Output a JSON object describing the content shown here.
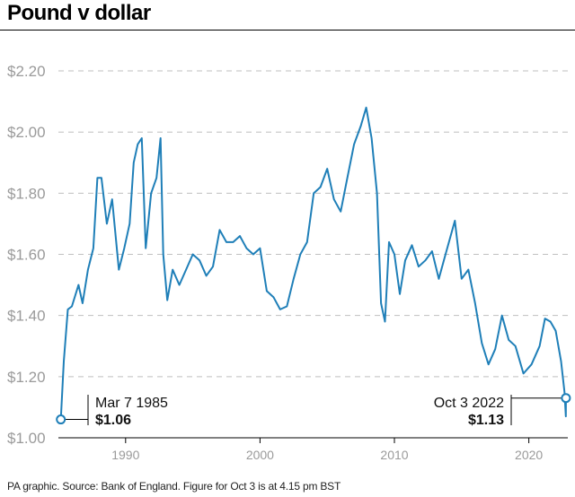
{
  "title": "Pound v dollar",
  "source": "PA graphic. Source: Bank of England. Figure for Oct 3 is at 4.15 pm BST",
  "colors": {
    "line": "#1f7fb8",
    "grid": "#bfbfbf",
    "tick": "#9a9a9a"
  },
  "chart_data": {
    "type": "line",
    "title": "Pound v dollar",
    "xlabel": "",
    "ylabel": "",
    "xlim": [
      1985.0,
      2022.9
    ],
    "ylim": [
      1.0,
      2.25
    ],
    "y_ticks": [
      1.0,
      1.2,
      1.4,
      1.6,
      1.8,
      2.0,
      2.2
    ],
    "y_tick_labels": [
      "$1.00",
      "$1.20",
      "$1.40",
      "$1.60",
      "$1.80",
      "$2.00",
      "$2.20"
    ],
    "x_ticks": [
      1990,
      2000,
      2010,
      2020
    ],
    "x_tick_labels": [
      "1990",
      "2000",
      "2010",
      "2020"
    ],
    "grid": "horizontal dashed",
    "series": [
      {
        "values": [
          [
            1985.18,
            1.06
          ],
          [
            1985.4,
            1.25
          ],
          [
            1985.7,
            1.42
          ],
          [
            1986.0,
            1.43
          ],
          [
            1986.5,
            1.5
          ],
          [
            1986.8,
            1.44
          ],
          [
            1987.2,
            1.55
          ],
          [
            1987.6,
            1.62
          ],
          [
            1987.9,
            1.85
          ],
          [
            1988.2,
            1.85
          ],
          [
            1988.6,
            1.7
          ],
          [
            1989.0,
            1.78
          ],
          [
            1989.5,
            1.55
          ],
          [
            1989.9,
            1.62
          ],
          [
            1990.3,
            1.7
          ],
          [
            1990.6,
            1.9
          ],
          [
            1990.9,
            1.96
          ],
          [
            1991.2,
            1.98
          ],
          [
            1991.5,
            1.62
          ],
          [
            1991.9,
            1.8
          ],
          [
            1992.3,
            1.85
          ],
          [
            1992.6,
            1.98
          ],
          [
            1992.8,
            1.6
          ],
          [
            1993.1,
            1.45
          ],
          [
            1993.5,
            1.55
          ],
          [
            1994.0,
            1.5
          ],
          [
            1994.5,
            1.55
          ],
          [
            1995.0,
            1.6
          ],
          [
            1995.5,
            1.58
          ],
          [
            1996.0,
            1.53
          ],
          [
            1996.5,
            1.56
          ],
          [
            1997.0,
            1.68
          ],
          [
            1997.5,
            1.64
          ],
          [
            1998.0,
            1.64
          ],
          [
            1998.5,
            1.66
          ],
          [
            1999.0,
            1.62
          ],
          [
            1999.5,
            1.6
          ],
          [
            2000.0,
            1.62
          ],
          [
            2000.5,
            1.48
          ],
          [
            2001.0,
            1.46
          ],
          [
            2001.5,
            1.42
          ],
          [
            2002.0,
            1.43
          ],
          [
            2002.5,
            1.52
          ],
          [
            2003.0,
            1.6
          ],
          [
            2003.5,
            1.64
          ],
          [
            2004.0,
            1.8
          ],
          [
            2004.5,
            1.82
          ],
          [
            2005.0,
            1.88
          ],
          [
            2005.5,
            1.78
          ],
          [
            2006.0,
            1.74
          ],
          [
            2006.5,
            1.85
          ],
          [
            2007.0,
            1.96
          ],
          [
            2007.5,
            2.02
          ],
          [
            2007.9,
            2.08
          ],
          [
            2008.3,
            1.98
          ],
          [
            2008.7,
            1.8
          ],
          [
            2009.0,
            1.44
          ],
          [
            2009.3,
            1.38
          ],
          [
            2009.6,
            1.64
          ],
          [
            2010.0,
            1.6
          ],
          [
            2010.4,
            1.47
          ],
          [
            2010.8,
            1.58
          ],
          [
            2011.3,
            1.63
          ],
          [
            2011.8,
            1.56
          ],
          [
            2012.3,
            1.58
          ],
          [
            2012.8,
            1.61
          ],
          [
            2013.3,
            1.52
          ],
          [
            2013.8,
            1.6
          ],
          [
            2014.5,
            1.71
          ],
          [
            2015.0,
            1.52
          ],
          [
            2015.5,
            1.55
          ],
          [
            2016.0,
            1.44
          ],
          [
            2016.5,
            1.31
          ],
          [
            2017.0,
            1.24
          ],
          [
            2017.5,
            1.29
          ],
          [
            2018.0,
            1.4
          ],
          [
            2018.5,
            1.32
          ],
          [
            2019.0,
            1.3
          ],
          [
            2019.6,
            1.21
          ],
          [
            2020.2,
            1.24
          ],
          [
            2020.8,
            1.3
          ],
          [
            2021.2,
            1.39
          ],
          [
            2021.6,
            1.38
          ],
          [
            2022.0,
            1.35
          ],
          [
            2022.4,
            1.25
          ],
          [
            2022.65,
            1.15
          ],
          [
            2022.75,
            1.07
          ],
          [
            2022.76,
            1.13
          ]
        ]
      }
    ],
    "annotations": [
      {
        "date": "Mar 7 1985",
        "value": "$1.06",
        "x": 1985.18,
        "y": 1.06
      },
      {
        "date": "Oct 3 2022",
        "value": "$1.13",
        "x": 2022.76,
        "y": 1.13
      }
    ]
  }
}
